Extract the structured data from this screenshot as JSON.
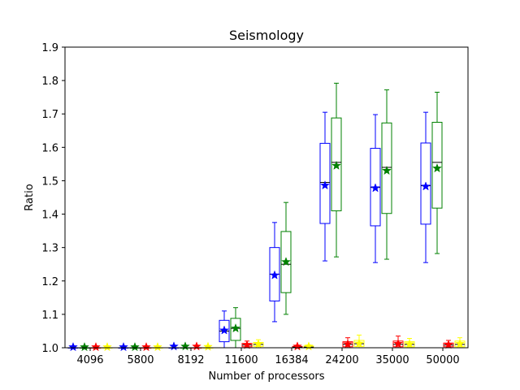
{
  "chart_data": {
    "type": "box",
    "title": "Seismology",
    "xlabel": "Number of processors",
    "ylabel": "Ratio",
    "ylim": [
      1.0,
      1.9
    ],
    "yticks": [
      "1.0",
      "1.1",
      "1.2",
      "1.3",
      "1.4",
      "1.5",
      "1.6",
      "1.7",
      "1.8",
      "1.9"
    ],
    "categories": [
      "4096",
      "5800",
      "8192",
      "11600",
      "16384",
      "24200",
      "35000",
      "50000"
    ],
    "grid": false,
    "legend": "none",
    "series": [
      {
        "color": "#0000ff",
        "boxes": [
          {
            "whislo": 1.0,
            "q1": 1.0,
            "med": 1.0,
            "q3": 1.0,
            "whishi": 1.0,
            "mean": 1.002
          },
          {
            "whislo": 1.0,
            "q1": 1.0,
            "med": 1.0,
            "q3": 1.0,
            "whishi": 1.0,
            "mean": 1.002
          },
          {
            "whislo": 1.0,
            "q1": 1.0,
            "med": 1.0,
            "q3": 1.0,
            "whishi": 1.0,
            "mean": 1.004
          },
          {
            "whislo": 1.0,
            "q1": 1.018,
            "med": 1.05,
            "q3": 1.082,
            "whishi": 1.11,
            "mean": 1.052
          },
          {
            "whislo": 1.078,
            "q1": 1.14,
            "med": 1.22,
            "q3": 1.3,
            "whishi": 1.375,
            "mean": 1.217
          },
          {
            "whislo": 1.26,
            "q1": 1.372,
            "med": 1.495,
            "q3": 1.612,
            "whishi": 1.705,
            "mean": 1.486
          },
          {
            "whislo": 1.255,
            "q1": 1.365,
            "med": 1.48,
            "q3": 1.597,
            "whishi": 1.698,
            "mean": 1.478
          },
          {
            "whislo": 1.255,
            "q1": 1.37,
            "med": 1.485,
            "q3": 1.613,
            "whishi": 1.705,
            "mean": 1.483
          }
        ]
      },
      {
        "color": "#008000",
        "boxes": [
          {
            "whislo": 1.0,
            "q1": 1.0,
            "med": 1.0,
            "q3": 1.0,
            "whishi": 1.0,
            "mean": 1.002
          },
          {
            "whislo": 1.0,
            "q1": 1.0,
            "med": 1.0,
            "q3": 1.0,
            "whishi": 1.0,
            "mean": 1.002
          },
          {
            "whislo": 1.0,
            "q1": 1.0,
            "med": 1.0,
            "q3": 1.0,
            "whishi": 1.0,
            "mean": 1.004
          },
          {
            "whislo": 1.0,
            "q1": 1.022,
            "med": 1.058,
            "q3": 1.088,
            "whishi": 1.12,
            "mean": 1.058
          },
          {
            "whislo": 1.1,
            "q1": 1.165,
            "med": 1.25,
            "q3": 1.348,
            "whishi": 1.435,
            "mean": 1.257
          },
          {
            "whislo": 1.272,
            "q1": 1.41,
            "med": 1.555,
            "q3": 1.688,
            "whishi": 1.792,
            "mean": 1.545
          },
          {
            "whislo": 1.265,
            "q1": 1.402,
            "med": 1.54,
            "q3": 1.673,
            "whishi": 1.772,
            "mean": 1.53
          },
          {
            "whislo": 1.282,
            "q1": 1.418,
            "med": 1.555,
            "q3": 1.675,
            "whishi": 1.765,
            "mean": 1.537
          }
        ]
      },
      {
        "color": "#ff0000",
        "boxes": [
          {
            "whislo": 1.0,
            "q1": 1.0,
            "med": 1.0,
            "q3": 1.0,
            "whishi": 1.0,
            "mean": 1.002
          },
          {
            "whislo": 1.0,
            "q1": 1.0,
            "med": 1.0,
            "q3": 1.0,
            "whishi": 1.0,
            "mean": 1.002
          },
          {
            "whislo": 1.0,
            "q1": 1.0,
            "med": 1.0,
            "q3": 1.0,
            "whishi": 1.0,
            "mean": 1.004
          },
          {
            "whislo": 1.0,
            "q1": 1.003,
            "med": 1.008,
            "q3": 1.013,
            "whishi": 1.02,
            "mean": 1.008
          },
          {
            "whislo": 1.0,
            "q1": 1.0,
            "med": 1.002,
            "q3": 1.004,
            "whishi": 1.006,
            "mean": 1.004
          },
          {
            "whislo": 1.0,
            "q1": 1.003,
            "med": 1.01,
            "q3": 1.018,
            "whishi": 1.03,
            "mean": 1.011
          },
          {
            "whislo": 1.0,
            "q1": 1.003,
            "med": 1.01,
            "q3": 1.02,
            "whishi": 1.035,
            "mean": 1.012
          },
          {
            "whislo": 1.0,
            "q1": 1.003,
            "med": 1.008,
            "q3": 1.014,
            "whishi": 1.022,
            "mean": 1.009
          }
        ]
      },
      {
        "color": "#ffff00",
        "boxes": [
          {
            "whislo": 1.0,
            "q1": 1.0,
            "med": 1.0,
            "q3": 1.0,
            "whishi": 1.0,
            "mean": 1.002
          },
          {
            "whislo": 1.0,
            "q1": 1.0,
            "med": 1.0,
            "q3": 1.0,
            "whishi": 1.0,
            "mean": 1.002
          },
          {
            "whislo": 1.0,
            "q1": 1.0,
            "med": 1.0,
            "q3": 1.0,
            "whishi": 1.0,
            "mean": 1.003
          },
          {
            "whislo": 1.0,
            "q1": 1.004,
            "med": 1.01,
            "q3": 1.016,
            "whishi": 1.024,
            "mean": 1.011
          },
          {
            "whislo": 1.0,
            "q1": 1.0,
            "med": 1.002,
            "q3": 1.005,
            "whishi": 1.008,
            "mean": 1.004
          },
          {
            "whislo": 1.0,
            "q1": 1.004,
            "med": 1.012,
            "q3": 1.022,
            "whishi": 1.038,
            "mean": 1.013
          },
          {
            "whislo": 1.0,
            "q1": 1.003,
            "med": 1.01,
            "q3": 1.018,
            "whishi": 1.028,
            "mean": 1.011
          },
          {
            "whislo": 1.0,
            "q1": 1.003,
            "med": 1.01,
            "q3": 1.02,
            "whishi": 1.03,
            "mean": 1.012
          }
        ]
      }
    ]
  }
}
